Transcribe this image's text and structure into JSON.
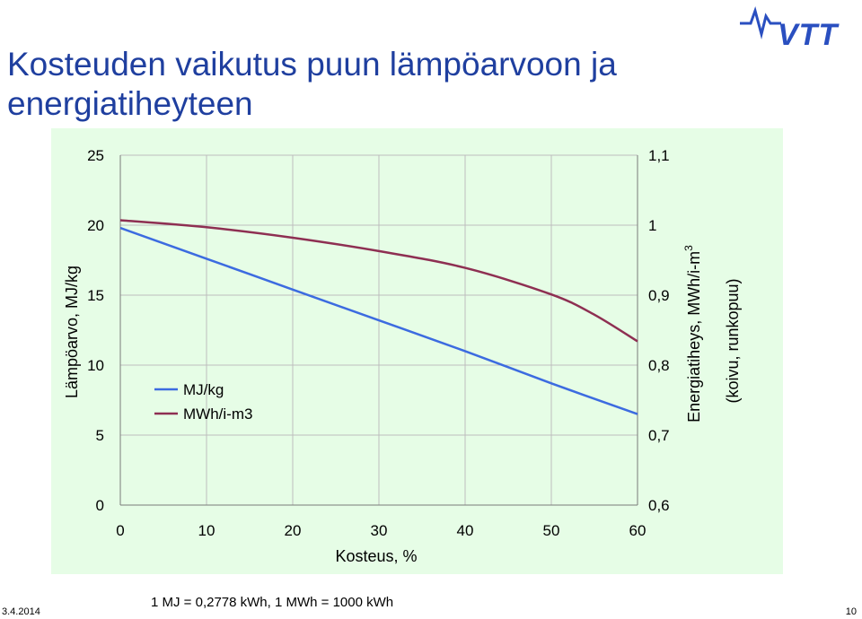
{
  "slide": {
    "title_line1": "Kosteuden vaikutus puun lämpöarvoon ja",
    "title_line2": "energiatiheyteen",
    "logo_text": "VTT",
    "date": "3.4.2014",
    "note": "1 MJ = 0,2778 kWh,  1 MWh = 1000 kWh",
    "page_number": "10"
  },
  "colors": {
    "title": "#1f3f9f",
    "plot_bg": "#e6fde6",
    "mj_series": "#3c6be0",
    "mwh_series": "#8e2f52",
    "logo": "#2a4fc0"
  },
  "chart_data": {
    "type": "line",
    "xlabel": "Kosteus, %",
    "ylabel_left": "Lämpöarvo, MJ/kg",
    "ylabel_right_line1": "Energiatiheys, MWh/i-m",
    "ylabel_right_sup": "3",
    "ylabel_right_line2": "(koivu, runkopuu)",
    "x_ticks": [
      "0",
      "10",
      "20",
      "30",
      "40",
      "50",
      "60"
    ],
    "y_left_ticks": [
      "0",
      "5",
      "10",
      "15",
      "20",
      "25"
    ],
    "y_right_ticks": [
      "0,6",
      "0,7",
      "0,8",
      "0,9",
      "1",
      "1,1"
    ],
    "xlim": [
      0,
      60
    ],
    "ylim_left": [
      0,
      25
    ],
    "ylim_right": [
      0.6,
      1.1
    ],
    "grid": true,
    "legend_position": "center-left",
    "series": [
      {
        "name": "MJ/kg",
        "axis": "left",
        "x": [
          0,
          10,
          20,
          30,
          40,
          50,
          60
        ],
        "values": [
          19.8,
          17.6,
          15.4,
          13.2,
          11.0,
          8.7,
          6.5
        ]
      },
      {
        "name": "MWh/i-m3",
        "axis": "right",
        "x": [
          0,
          10,
          20,
          30,
          40,
          50,
          55,
          60
        ],
        "values": [
          1.007,
          0.997,
          0.982,
          0.963,
          0.939,
          0.901,
          0.872,
          0.834
        ]
      }
    ]
  }
}
